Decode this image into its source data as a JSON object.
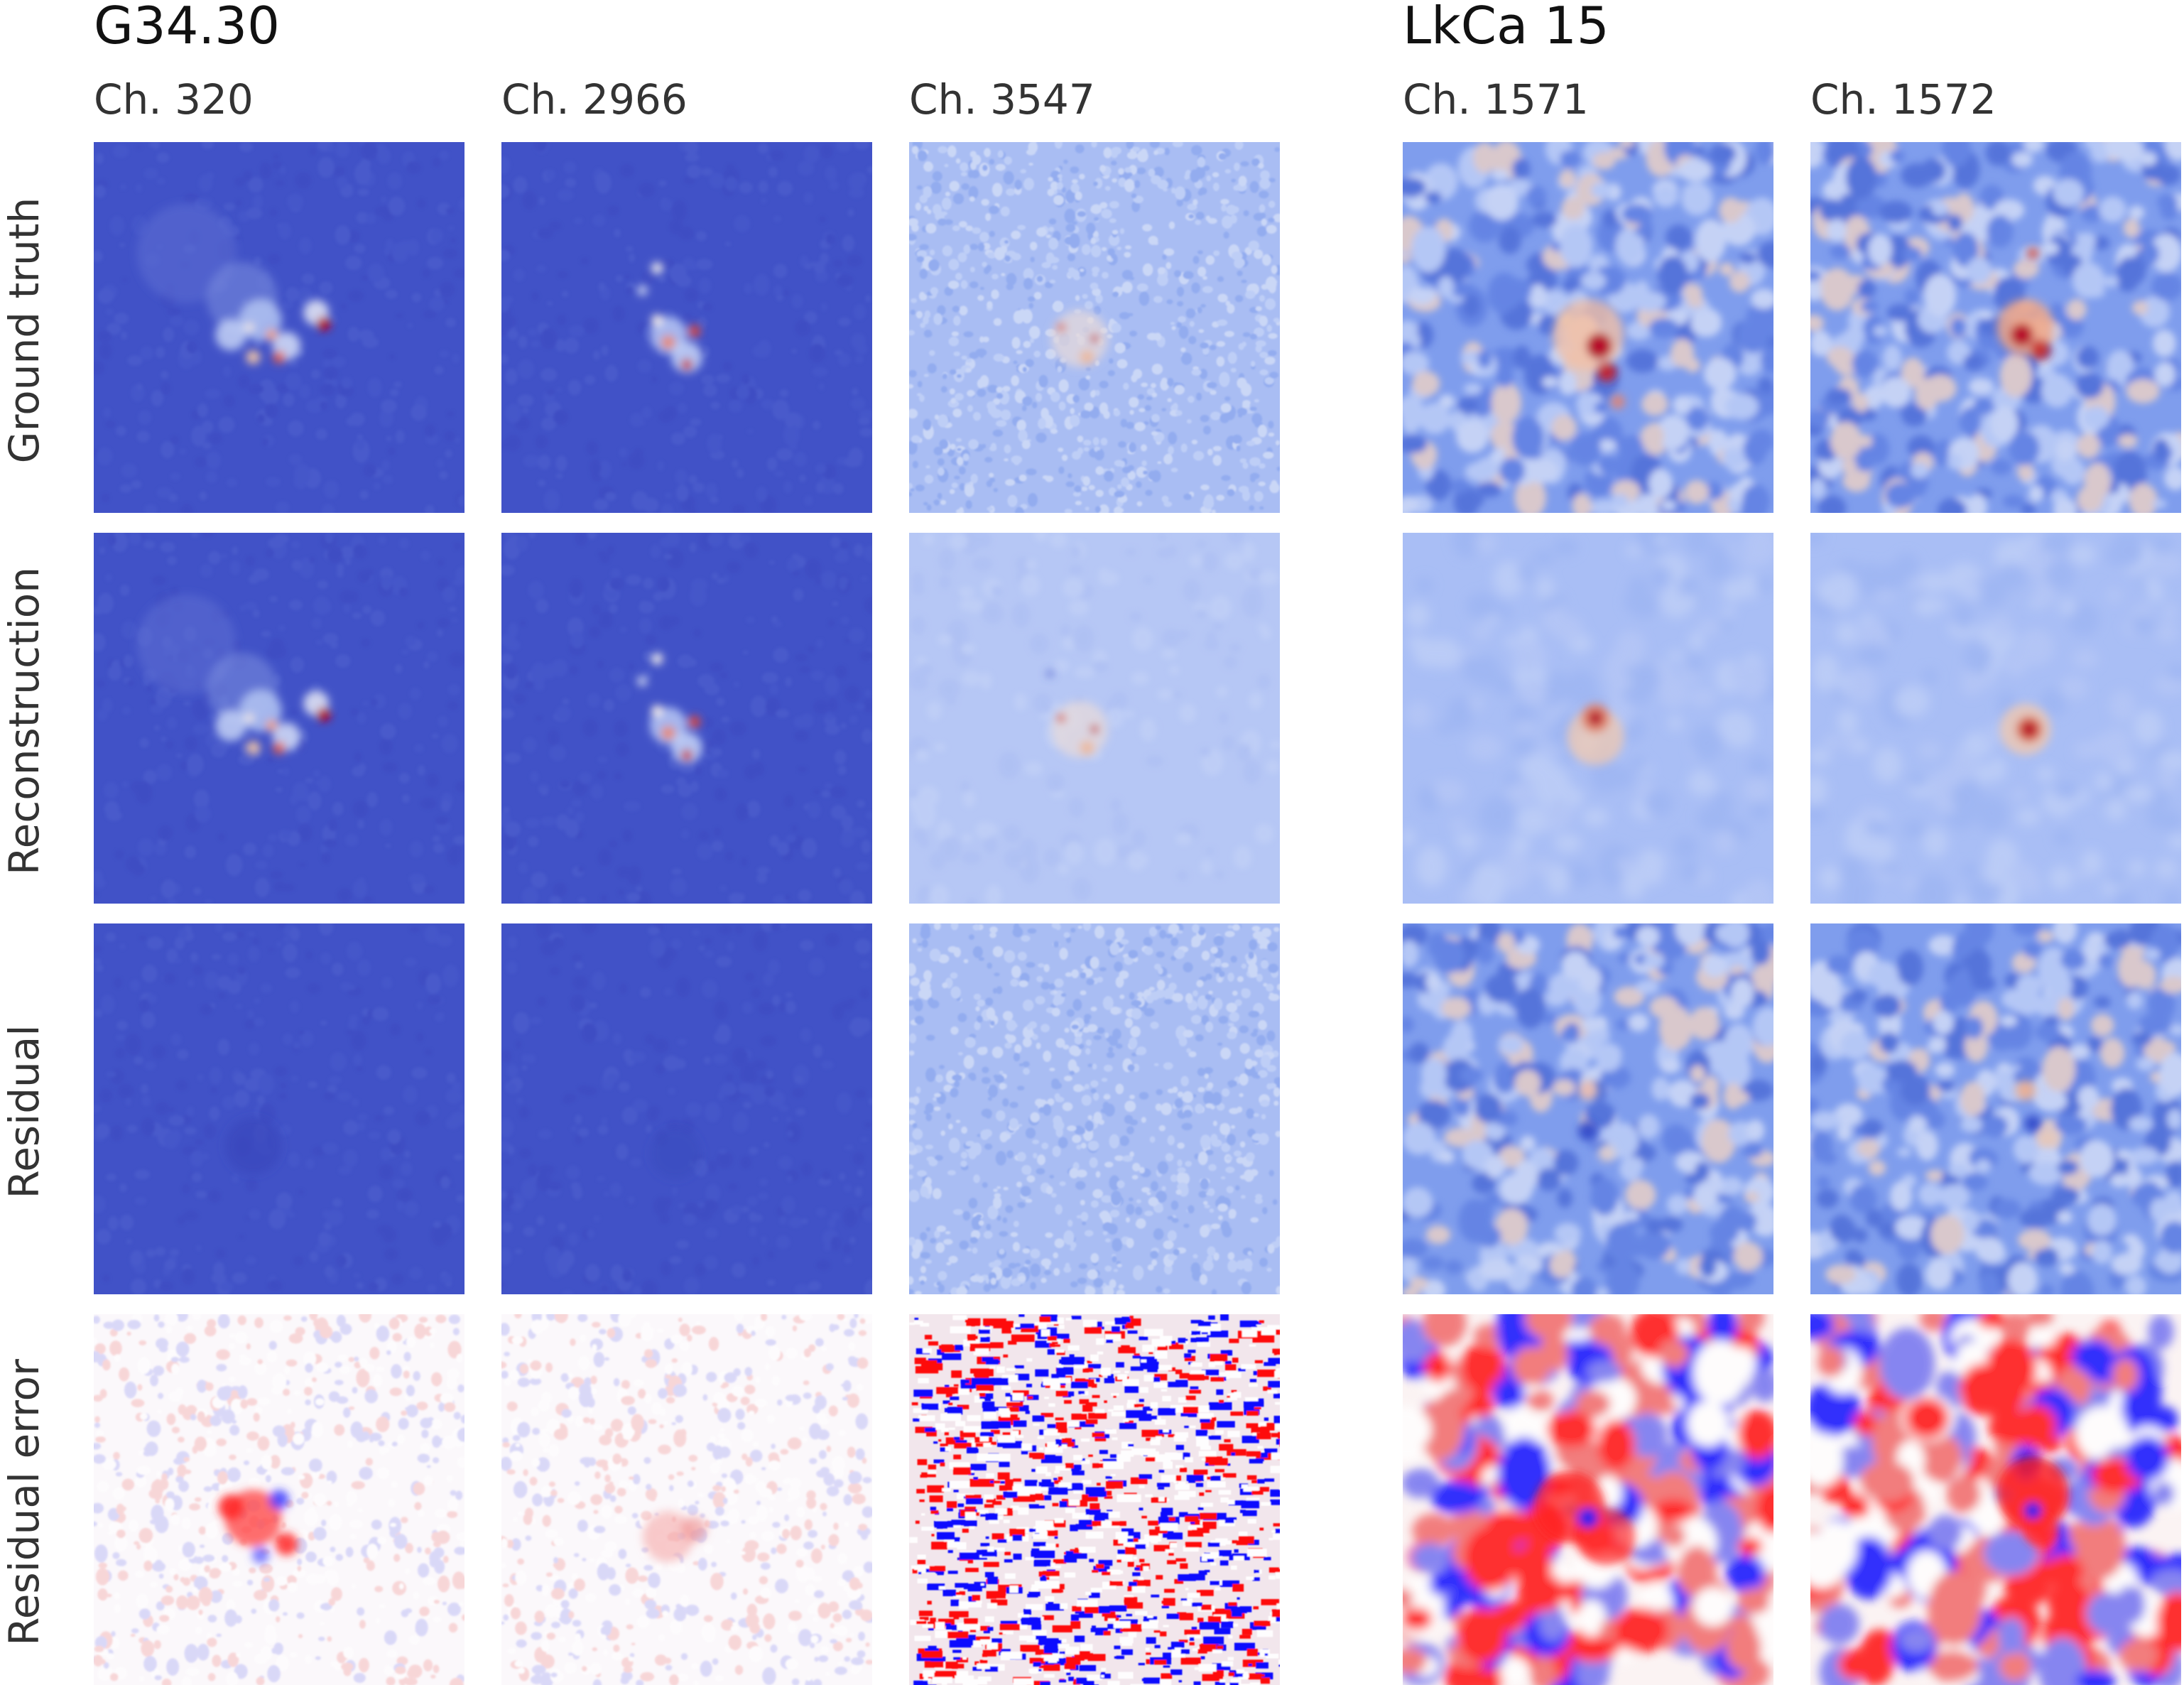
{
  "figure": {
    "groups": [
      {
        "id": "g34",
        "title": "G34.30",
        "channels": [
          "Ch. 320",
          "Ch. 2966",
          "Ch. 3547"
        ]
      },
      {
        "id": "lkca",
        "title": "LkCa 15",
        "channels": [
          "Ch. 1571",
          "Ch. 1572"
        ]
      }
    ],
    "rows": [
      "Ground truth",
      "Reconstruction",
      "Residual",
      "Residual error"
    ],
    "colormaps": {
      "coolwarm_low": "#3b4cc0",
      "coolwarm_mid": "#dddddd",
      "coolwarm_high": "#b40426",
      "bwr_low": "#0000ff",
      "bwr_mid": "#ffffff",
      "bwr_high": "#ff0000"
    }
  }
}
